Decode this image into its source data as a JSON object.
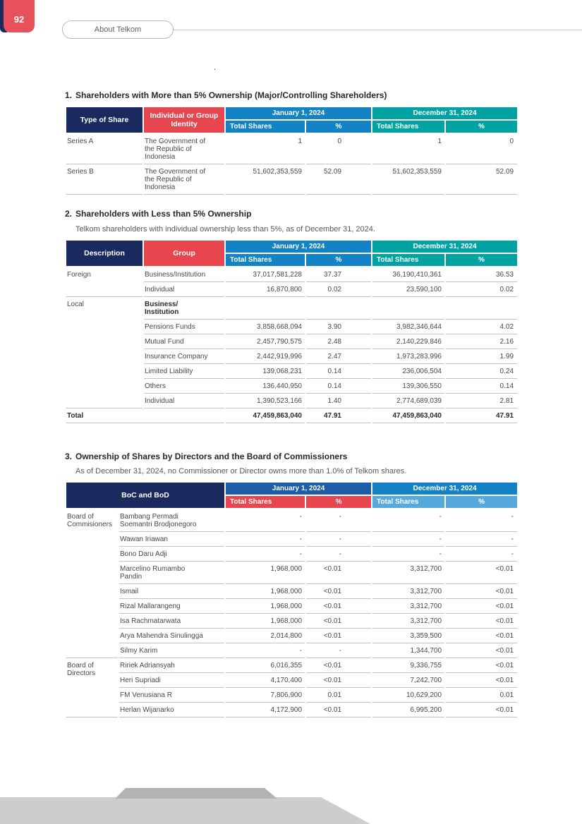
{
  "page": {
    "number": "92",
    "tab_label": "About Telkom",
    "stray_mark": "."
  },
  "colors": {
    "navy": "#1b2a5e",
    "red": "#e8464f",
    "blue": "#1383c6",
    "teal": "#00a3a1",
    "dark_blue": "#1d5ca9",
    "light_blue": "#56a9dc"
  },
  "sections": [
    {
      "number": "1.",
      "title": "Shareholders with More than 5% Ownership (Major/Controlling Shareholders)"
    },
    {
      "number": "2.",
      "title": "Shareholders with Less than 5% Ownership",
      "intro": "Telkom shareholders with individual ownership less than 5%, as of December 31, 2024."
    },
    {
      "number": "3.",
      "title": "Ownership of Shares by Directors and the Board of Commissioners",
      "intro": "As of December 31, 2024, no Commissioner or Director owns more than 1.0% of Telkom shares."
    }
  ],
  "tables": {
    "t1": {
      "cols": [
        108,
        114,
        112,
        92,
        102,
        101
      ],
      "head": {
        "left": [
          {
            "label": "Type of Share",
            "bg": "navy"
          },
          {
            "label": "Individual or Group\nIdentity",
            "bg": "red"
          }
        ],
        "groups": [
          {
            "label": "January 1, 2024",
            "bg": "blue",
            "sub_bg": "blue",
            "subs": [
              "Total Shares",
              "%"
            ]
          },
          {
            "label": "December 31, 2024",
            "bg": "teal",
            "sub_bg": "teal",
            "subs": [
              "Total Shares",
              "%"
            ]
          }
        ]
      },
      "rows": [
        [
          {
            "t": "Series A",
            "cls": "lab"
          },
          {
            "t": "The Government of the Republic of Indonesia",
            "cls": "lab2"
          },
          {
            "t": "1",
            "cls": "n1"
          },
          {
            "t": "0",
            "cls": "n2"
          },
          {
            "t": "1",
            "cls": "n3"
          },
          {
            "t": "0",
            "cls": "n4"
          }
        ],
        [
          {
            "t": "Series B",
            "cls": "lab"
          },
          {
            "t": "The Government of the Republic of Indonesia",
            "cls": "lab2"
          },
          {
            "t": "51,602,353,559",
            "cls": "n1"
          },
          {
            "t": "52.09",
            "cls": "n2"
          },
          {
            "t": "51,602,353,559",
            "cls": "n3"
          },
          {
            "t": "52.09",
            "cls": "n4"
          }
        ]
      ]
    },
    "t2": {
      "cols": [
        108,
        114,
        112,
        92,
        102,
        101
      ],
      "head": {
        "left": [
          {
            "label": "Description",
            "bg": "navy"
          },
          {
            "label": "Group",
            "bg": "red"
          }
        ],
        "groups": [
          {
            "label": "January 1, 2024",
            "bg": "blue",
            "sub_bg": "blue",
            "subs": [
              "Total Shares",
              "%"
            ]
          },
          {
            "label": "December 31, 2024",
            "bg": "teal",
            "sub_bg": "teal",
            "subs": [
              "Total Shares",
              "%"
            ]
          }
        ]
      },
      "rows": [
        [
          {
            "t": "Foreign",
            "cls": "lab",
            "rs": 2
          },
          {
            "t": "Business/Institution",
            "cls": "lab2"
          },
          {
            "t": "37,017,581,228",
            "cls": "n1"
          },
          {
            "t": "37.37",
            "cls": "n2"
          },
          {
            "t": "36,190,410,361",
            "cls": "n3"
          },
          {
            "t": "36.53",
            "cls": "n4"
          }
        ],
        [
          {
            "t": "Individual",
            "cls": "lab2"
          },
          {
            "t": "16,870,800",
            "cls": "n1"
          },
          {
            "t": "0.02",
            "cls": "n2"
          },
          {
            "t": "23,590,100",
            "cls": "n3"
          },
          {
            "t": "0.02",
            "cls": "n4"
          }
        ],
        [
          {
            "t": "Local",
            "cls": "lab",
            "rs": 7
          },
          {
            "t": "Business/\nInstitution",
            "cls": "lab2 b pre"
          },
          {
            "t": "",
            "cls": "n1"
          },
          {
            "t": "",
            "cls": "n2"
          },
          {
            "t": "",
            "cls": "n3"
          },
          {
            "t": "",
            "cls": "n4"
          }
        ],
        [
          {
            "t": "Pensions Funds",
            "cls": "lab2"
          },
          {
            "t": "3,858,668,094",
            "cls": "n1"
          },
          {
            "t": "3.90",
            "cls": "n2"
          },
          {
            "t": "3,982,346,644",
            "cls": "n3"
          },
          {
            "t": "4.02",
            "cls": "n4"
          }
        ],
        [
          {
            "t": "Mutual Fund",
            "cls": "lab2"
          },
          {
            "t": "2,457,790,575",
            "cls": "n1"
          },
          {
            "t": "2.48",
            "cls": "n2"
          },
          {
            "t": "2,140,229,846",
            "cls": "n3"
          },
          {
            "t": "2.16",
            "cls": "n4"
          }
        ],
        [
          {
            "t": "Insurance Company",
            "cls": "lab2"
          },
          {
            "t": "2,442,919,996",
            "cls": "n1"
          },
          {
            "t": "2.47",
            "cls": "n2"
          },
          {
            "t": "1,973,283,996",
            "cls": "n3"
          },
          {
            "t": "1.99",
            "cls": "n4"
          }
        ],
        [
          {
            "t": "Limited Liability",
            "cls": "lab2"
          },
          {
            "t": "139,068,231",
            "cls": "n1"
          },
          {
            "t": "0.14",
            "cls": "n2"
          },
          {
            "t": "236,006,504",
            "cls": "n3"
          },
          {
            "t": "0.24",
            "cls": "n4"
          }
        ],
        [
          {
            "t": "Others",
            "cls": "lab2"
          },
          {
            "t": "136,440,950",
            "cls": "n1"
          },
          {
            "t": "0.14",
            "cls": "n2"
          },
          {
            "t": "139,306,550",
            "cls": "n3"
          },
          {
            "t": "0.14",
            "cls": "n4"
          }
        ],
        [
          {
            "t": "Individual",
            "cls": "lab2"
          },
          {
            "t": "1,390,523,166",
            "cls": "n1"
          },
          {
            "t": "1.40",
            "cls": "n2"
          },
          {
            "t": "2,774,689,039",
            "cls": "n3"
          },
          {
            "t": "2.81",
            "cls": "n4"
          }
        ],
        [
          {
            "t": "Total",
            "cls": "lab b",
            "cs": 2
          },
          {
            "t": "47,459,863,040",
            "cls": "n1 b"
          },
          {
            "t": "47.91",
            "cls": "n2 b"
          },
          {
            "t": "47,459,863,040",
            "cls": "n3 b"
          },
          {
            "t": "47.91",
            "cls": "n4 b"
          }
        ]
      ]
    },
    "t3": {
      "cols": [
        73,
        149,
        112,
        92,
        102,
        101
      ],
      "head": {
        "left": [
          {
            "label": "BoC and BoD",
            "bg": "navy",
            "colspan": 2
          }
        ],
        "groups": [
          {
            "label": "January 1, 2024",
            "bg": "dark_blue",
            "sub_bg": "red",
            "subs": [
              "Total Shares",
              "%"
            ]
          },
          {
            "label": "December 31, 2024",
            "bg": "blue",
            "sub_bg": "light_blue",
            "subs": [
              "Total Shares",
              "%"
            ]
          }
        ]
      },
      "rows": [
        [
          {
            "t": "Board of Commisioners",
            "cls": "lab",
            "rs": 9
          },
          {
            "t": "Bambang Permadi Soemantri Brodjonegoro",
            "cls": "lab2"
          },
          {
            "t": "-",
            "cls": "n1"
          },
          {
            "t": "-",
            "cls": "n2"
          },
          {
            "t": "-",
            "cls": "n3"
          },
          {
            "t": "-",
            "cls": "n4"
          }
        ],
        [
          {
            "t": "Wawan Iriawan",
            "cls": "lab2"
          },
          {
            "t": "-",
            "cls": "n1"
          },
          {
            "t": "-",
            "cls": "n2"
          },
          {
            "t": "-",
            "cls": "n3"
          },
          {
            "t": "-",
            "cls": "n4"
          }
        ],
        [
          {
            "t": "Bono Daru Adji",
            "cls": "lab2"
          },
          {
            "t": "-",
            "cls": "n1"
          },
          {
            "t": "-",
            "cls": "n2"
          },
          {
            "t": "-",
            "cls": "n3"
          },
          {
            "t": "-",
            "cls": "n4"
          }
        ],
        [
          {
            "t": "Marcelino Rumambo Pandin",
            "cls": "lab2"
          },
          {
            "t": "1,968,000",
            "cls": "n1"
          },
          {
            "t": "<0.01",
            "cls": "n2"
          },
          {
            "t": "3,312,700",
            "cls": "n3"
          },
          {
            "t": "<0.01",
            "cls": "n4"
          }
        ],
        [
          {
            "t": "Ismail",
            "cls": "lab2"
          },
          {
            "t": "1,968,000",
            "cls": "n1"
          },
          {
            "t": "<0.01",
            "cls": "n2"
          },
          {
            "t": "3,312,700",
            "cls": "n3"
          },
          {
            "t": "<0.01",
            "cls": "n4"
          }
        ],
        [
          {
            "t": "Rizal Mallarangeng",
            "cls": "lab2"
          },
          {
            "t": "1,968,000",
            "cls": "n1"
          },
          {
            "t": "<0.01",
            "cls": "n2"
          },
          {
            "t": "3,312,700",
            "cls": "n3"
          },
          {
            "t": "<0.01",
            "cls": "n4"
          }
        ],
        [
          {
            "t": "Isa Rachmatarwata",
            "cls": "lab2"
          },
          {
            "t": "1,968,000",
            "cls": "n1"
          },
          {
            "t": "<0.01",
            "cls": "n2"
          },
          {
            "t": "3,312,700",
            "cls": "n3"
          },
          {
            "t": "<0.01",
            "cls": "n4"
          }
        ],
        [
          {
            "t": "Arya Mahendra Sinulingga",
            "cls": "lab2"
          },
          {
            "t": "2,014,800",
            "cls": "n1"
          },
          {
            "t": "<0.01",
            "cls": "n2"
          },
          {
            "t": "3,359,500",
            "cls": "n3"
          },
          {
            "t": "<0.01",
            "cls": "n4"
          }
        ],
        [
          {
            "t": "Silmy Karim",
            "cls": "lab2"
          },
          {
            "t": "-",
            "cls": "n1"
          },
          {
            "t": "-",
            "cls": "n2"
          },
          {
            "t": "1,344,700",
            "cls": "n3"
          },
          {
            "t": "<0.01",
            "cls": "n4"
          }
        ],
        [
          {
            "t": "Board of Directors",
            "cls": "lab",
            "rs": 4
          },
          {
            "t": "Ririek Adriansyah",
            "cls": "lab2"
          },
          {
            "t": "6,016,355",
            "cls": "n1"
          },
          {
            "t": "<0.01",
            "cls": "n2"
          },
          {
            "t": "9,336,755",
            "cls": "n3"
          },
          {
            "t": "<0.01",
            "cls": "n4"
          }
        ],
        [
          {
            "t": "Heri Supriadi",
            "cls": "lab2"
          },
          {
            "t": "4,170,400",
            "cls": "n1"
          },
          {
            "t": "<0.01",
            "cls": "n2"
          },
          {
            "t": "7,242,700",
            "cls": "n3"
          },
          {
            "t": "<0.01",
            "cls": "n4"
          }
        ],
        [
          {
            "t": "FM Venusiana R",
            "cls": "lab2"
          },
          {
            "t": "7,806,900",
            "cls": "n1"
          },
          {
            "t": "0.01",
            "cls": "n2"
          },
          {
            "t": "10,629,200",
            "cls": "n3"
          },
          {
            "t": "0.01",
            "cls": "n4"
          }
        ],
        [
          {
            "t": "Herlan Wijanarko",
            "cls": "lab2"
          },
          {
            "t": "4,172,900",
            "cls": "n1"
          },
          {
            "t": "<0.01",
            "cls": "n2"
          },
          {
            "t": "6,995,200",
            "cls": "n3"
          },
          {
            "t": "<0.01",
            "cls": "n4"
          }
        ]
      ]
    }
  }
}
